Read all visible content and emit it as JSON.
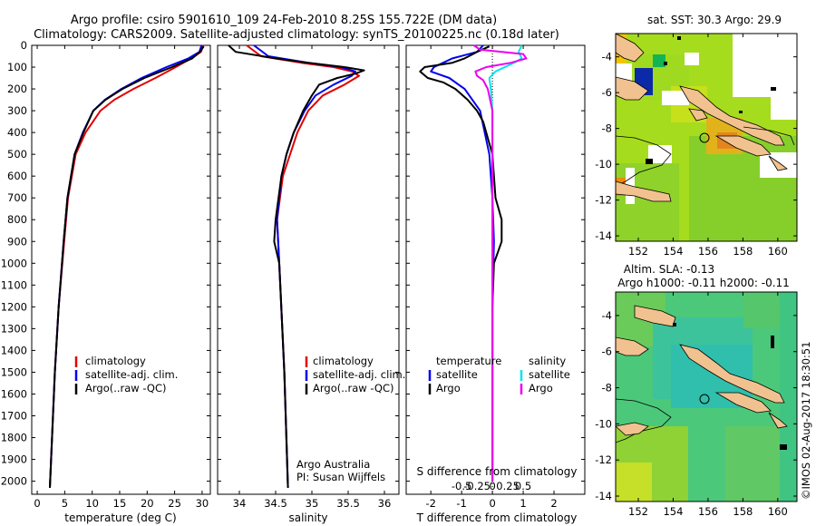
{
  "header": {
    "title_line1": "Argo profile: csiro 5901610_109 24-Feb-2010 8.25S 155.722E (DM data)",
    "title_line2": "Climatology: CARS2009. Satellite-adjusted climatology: synTS_20100225.nc (0.18d later)"
  },
  "colors": {
    "climatology": "#e00000",
    "satellite": "#0000ee",
    "argo": "#000000",
    "salinity_satellite": "#00e5ee",
    "salinity_argo": "#ee00ee"
  },
  "depth_axis": {
    "ylim": [
      0,
      2060
    ],
    "ticks": [
      "0",
      "100",
      "200",
      "300",
      "400",
      "500",
      "600",
      "700",
      "800",
      "900",
      "1000",
      "1100",
      "1200",
      "1300",
      "1400",
      "1500",
      "1600",
      "1700",
      "1800",
      "1900",
      "2000"
    ]
  },
  "chart_data": [
    {
      "id": "temperature",
      "type": "line",
      "xlabel": "temperature (deg C)",
      "xlim": [
        -1,
        31.5
      ],
      "xticks": [
        "0",
        "5",
        "10",
        "15",
        "20",
        "25",
        "30"
      ],
      "legend": [
        "climatology",
        "satellite-adj. clim.",
        "Argo(..raw -QC)"
      ],
      "series": [
        {
          "name": "climatology",
          "depth": [
            0,
            30,
            60,
            100,
            150,
            200,
            250,
            300,
            400,
            500,
            700,
            900,
            1200,
            1500,
            1800,
            2030
          ],
          "values": [
            30.2,
            29.8,
            28,
            25.2,
            21.5,
            17.5,
            14,
            11.5,
            8.8,
            7,
            5.6,
            4.9,
            3.9,
            3.2,
            2.7,
            2.3
          ]
        },
        {
          "name": "satellite-adj. clim.",
          "depth": [
            0,
            30,
            60,
            100,
            150,
            200,
            250,
            300,
            400,
            500,
            700,
            900,
            1200,
            1500,
            1800,
            2030
          ],
          "values": [
            29.9,
            29.5,
            27.5,
            23.5,
            19,
            15.3,
            12.3,
            10.2,
            8.3,
            6.8,
            5.5,
            4.8,
            3.9,
            3.2,
            2.7,
            2.3
          ]
        },
        {
          "name": "Argo(..raw -QC)",
          "depth": [
            5,
            30,
            60,
            100,
            150,
            200,
            250,
            300,
            400,
            500,
            700,
            900,
            1200,
            1500,
            1800,
            2030
          ],
          "values": [
            30.3,
            29.6,
            28.2,
            24.5,
            19.5,
            15.5,
            12.4,
            10.2,
            8.4,
            6.8,
            5.5,
            4.8,
            3.9,
            3.2,
            2.7,
            2.3
          ]
        }
      ]
    },
    {
      "id": "salinity",
      "type": "line",
      "xlabel": "salinity",
      "xlim": [
        33.7,
        36.2
      ],
      "xticks": [
        "34",
        "34.5",
        "35",
        "35.5",
        "36"
      ],
      "legend": [
        "climatology",
        "satellite-adj. clim.",
        "Argo(..raw -QC)"
      ],
      "annotations": [
        "Argo Australia",
        "PI: Susan Wijffels"
      ],
      "series": [
        {
          "name": "climatology",
          "depth": [
            0,
            50,
            80,
            100,
            120,
            140,
            180,
            230,
            300,
            400,
            500,
            600,
            800,
            1000,
            1500,
            2030
          ],
          "values": [
            34.1,
            34.3,
            34.85,
            35.3,
            35.55,
            35.65,
            35.45,
            35.15,
            34.95,
            34.8,
            34.7,
            34.6,
            34.52,
            34.55,
            34.62,
            34.67
          ]
        },
        {
          "name": "satellite-adj. clim.",
          "depth": [
            0,
            50,
            80,
            100,
            120,
            140,
            180,
            230,
            300,
            400,
            500,
            600,
            800,
            1000,
            1500,
            2030
          ],
          "values": [
            34.2,
            34.4,
            34.95,
            35.4,
            35.6,
            35.55,
            35.3,
            35.05,
            34.9,
            34.75,
            34.65,
            34.58,
            34.52,
            34.55,
            34.62,
            34.67
          ]
        },
        {
          "name": "Argo(..raw -QC)",
          "depth": [
            0,
            30,
            60,
            80,
            100,
            115,
            130,
            150,
            180,
            230,
            300,
            400,
            500,
            600,
            800,
            900,
            1000,
            1500,
            2030
          ],
          "values": [
            33.85,
            33.95,
            34.5,
            34.95,
            35.45,
            35.72,
            35.6,
            35.35,
            35.1,
            35.0,
            34.88,
            34.75,
            34.65,
            34.58,
            34.5,
            34.48,
            34.55,
            34.62,
            34.67
          ]
        }
      ]
    },
    {
      "id": "differences",
      "type": "line",
      "xlabel": "T difference from climatology",
      "xlabel_top": "S difference from climatology",
      "xlim": [
        -2.8,
        3.0
      ],
      "xticks": [
        "-2",
        "-1",
        "0",
        "1",
        "2"
      ],
      "xticks_top": [
        "-0.5",
        "-0.25",
        "0",
        "0.25",
        "0.5"
      ],
      "legend_titles": [
        "temperature",
        "salinity"
      ],
      "legend": [
        "satellite",
        "Argo",
        "satellite",
        "Argo"
      ],
      "series": [
        {
          "name": "temperature satellite",
          "depth": [
            0,
            30,
            60,
            80,
            100,
            120,
            150,
            200,
            300,
            500,
            700,
            900,
            1200,
            1500,
            2000
          ],
          "values": [
            -0.3,
            -0.5,
            -1.3,
            -1.6,
            -1.9,
            -2.0,
            -1.4,
            -0.9,
            -0.4,
            -0.1,
            0,
            0.05,
            0,
            0,
            0
          ]
        },
        {
          "name": "temperature Argo",
          "depth": [
            5,
            30,
            60,
            80,
            100,
            120,
            150,
            170,
            200,
            250,
            300,
            350,
            450,
            500,
            600,
            700,
            800,
            900,
            1000,
            1200,
            1500,
            2000
          ],
          "values": [
            -0.1,
            -0.5,
            -0.9,
            -1.3,
            -2.2,
            -2.35,
            -2.1,
            -1.6,
            -1.2,
            -0.8,
            -0.5,
            -0.3,
            -0.1,
            0,
            0.05,
            0.1,
            0.3,
            0.3,
            0.05,
            0,
            0,
            0
          ]
        },
        {
          "name": "salinity satellite",
          "depth": [
            0,
            30,
            60,
            80,
            100,
            120,
            150,
            200,
            300,
            500,
            800,
            1200,
            2000
          ],
          "values": [
            0.95,
            0.85,
            0.95,
            0.7,
            0.4,
            0.1,
            -0.1,
            -0.05,
            0,
            0,
            0,
            0,
            0
          ]
        },
        {
          "name": "salinity Argo",
          "depth": [
            0,
            20,
            40,
            60,
            80,
            100,
            120,
            140,
            160,
            200,
            300,
            500,
            800,
            1200,
            2000
          ],
          "values": [
            -0.6,
            -0.4,
            1.0,
            1.1,
            0.6,
            -0.2,
            -0.55,
            -0.5,
            -0.3,
            -0.15,
            0,
            0,
            0,
            0,
            0
          ]
        }
      ]
    }
  ],
  "maps": {
    "sst": {
      "title": "sat. SST: 30.3 Argo: 29.9",
      "yticks": [
        "-4",
        "-6",
        "-8",
        "-10",
        "-12",
        "-14"
      ],
      "xticks": [
        "152",
        "154",
        "156",
        "158",
        "160"
      ]
    },
    "sla": {
      "title_line1": "Altim. SLA: -0.13",
      "title_line2": "Argo h1000: -0.11 h2000: -0.11",
      "yticks": [
        "-4",
        "-6",
        "-8",
        "-10",
        "-12",
        "-14"
      ],
      "xticks": [
        "152",
        "154",
        "156",
        "158",
        "160"
      ]
    }
  },
  "footer": {
    "credit": "©IMOS 02-Aug-2017 18:30:51"
  }
}
